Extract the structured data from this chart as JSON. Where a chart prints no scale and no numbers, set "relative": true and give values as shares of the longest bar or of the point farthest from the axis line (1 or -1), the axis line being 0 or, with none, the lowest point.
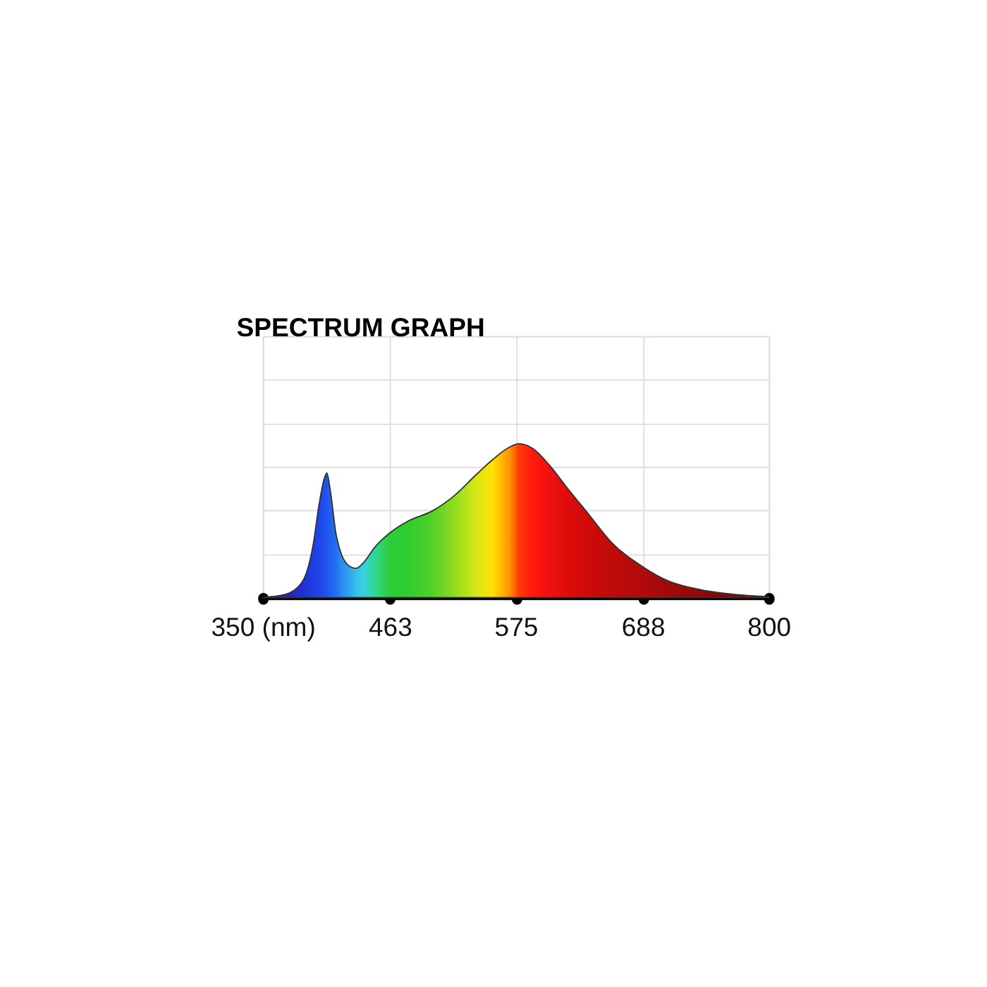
{
  "chart_data": {
    "type": "area",
    "title": "SPECTRUM GRAPH",
    "relative": true,
    "xlim": [
      350,
      800
    ],
    "xticks": [
      {
        "value": 350,
        "label": "350 (nm)"
      },
      463,
      575,
      688,
      800
    ],
    "grid": true,
    "series": [
      {
        "colors": [
          "#3a1f9a",
          "#3020b0",
          "#2030d0",
          "#1f3fe0",
          "#1f45e8",
          "#1f50ec",
          "#2055ee",
          "#2060f0",
          "#2070f0",
          "#2a8af0",
          "#30a8f0",
          "#38c0e8",
          "#38d0e0",
          "#30d890",
          "#2ecc3a",
          "#30cc30",
          "#50d028",
          "#90dc20",
          "#d8e818",
          "#ffe000",
          "#ff9000",
          "#ff3a0a",
          "#ff1a0a",
          "#f01010",
          "#e00c0c",
          "#d00a0a",
          "#c00a0a",
          "#b00a0a",
          "#a00a0a",
          "#900808",
          "#800808",
          "#700808"
        ],
        "x": [
          350,
          370,
          385,
          395,
          400,
          405,
          407,
          410,
          415,
          420,
          428,
          433,
          440,
          450,
          463,
          480,
          500,
          520,
          540,
          555,
          570,
          578,
          590,
          605,
          620,
          640,
          660,
          688,
          710,
          740,
          770,
          800
        ],
        "values": [
          0,
          0.02,
          0.1,
          0.35,
          0.6,
          0.78,
          0.81,
          0.7,
          0.42,
          0.28,
          0.2,
          0.19,
          0.23,
          0.33,
          0.42,
          0.5,
          0.56,
          0.66,
          0.8,
          0.9,
          0.98,
          1.0,
          0.97,
          0.86,
          0.72,
          0.54,
          0.36,
          0.2,
          0.11,
          0.05,
          0.02,
          0.005
        ]
      }
    ]
  }
}
